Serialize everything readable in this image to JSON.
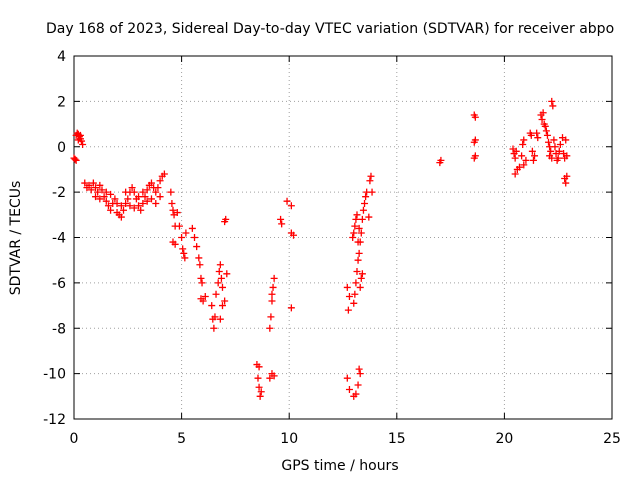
{
  "chart_data": {
    "type": "scatter",
    "title": "Day 168 of 2023, Sidereal Day-to-day VTEC variation (SDTVAR) for receiver abpo",
    "xlabel": "GPS time / hours",
    "ylabel": "SDTVAR / TECUs",
    "xlim": [
      0,
      25
    ],
    "ylim": [
      -12,
      4
    ],
    "x_ticks": [
      0,
      5,
      10,
      15,
      20,
      25
    ],
    "x_tick_labels": [
      "0",
      "5",
      "10",
      "15",
      "20",
      "25"
    ],
    "y_ticks": [
      -12,
      -10,
      -8,
      -6,
      -4,
      -2,
      0,
      2,
      4
    ],
    "y_tick_labels": [
      "-12",
      "-10",
      "-8",
      "-6",
      "-4",
      "-2",
      "0",
      "2",
      "4"
    ],
    "grid": true,
    "marker": "plus",
    "color": "#ff0000",
    "series": [
      {
        "name": "SDTVAR",
        "points": [
          [
            0.0,
            -0.5
          ],
          [
            0.05,
            -0.55
          ],
          [
            0.1,
            -0.6
          ],
          [
            0.1,
            0.5
          ],
          [
            0.15,
            0.6
          ],
          [
            0.2,
            0.55
          ],
          [
            0.25,
            0.45
          ],
          [
            0.3,
            0.35
          ],
          [
            0.35,
            0.25
          ],
          [
            0.4,
            0.1
          ],
          [
            0.2,
            0.3
          ],
          [
            0.3,
            0.5
          ],
          [
            0.5,
            -1.6
          ],
          [
            0.6,
            -1.8
          ],
          [
            0.7,
            -1.7
          ],
          [
            0.8,
            -1.9
          ],
          [
            0.9,
            -1.6
          ],
          [
            1.0,
            -1.8
          ],
          [
            1.1,
            -2.0
          ],
          [
            1.2,
            -1.7
          ],
          [
            1.3,
            -1.9
          ],
          [
            1.4,
            -2.2
          ],
          [
            1.5,
            -2.4
          ],
          [
            1.6,
            -2.6
          ],
          [
            1.7,
            -2.8
          ],
          [
            1.8,
            -2.5
          ],
          [
            1.9,
            -2.3
          ],
          [
            2.0,
            -2.9
          ],
          [
            2.1,
            -3.0
          ],
          [
            2.2,
            -3.1
          ],
          [
            2.3,
            -2.8
          ],
          [
            2.4,
            -2.5
          ],
          [
            2.5,
            -2.3
          ],
          [
            2.6,
            -2.0
          ],
          [
            2.7,
            -1.8
          ],
          [
            2.8,
            -2.0
          ],
          [
            2.9,
            -2.3
          ],
          [
            3.0,
            -2.6
          ],
          [
            3.1,
            -2.8
          ],
          [
            3.2,
            -2.5
          ],
          [
            3.3,
            -2.2
          ],
          [
            3.4,
            -1.9
          ],
          [
            3.5,
            -1.7
          ],
          [
            3.6,
            -1.6
          ],
          [
            3.7,
            -1.8
          ],
          [
            3.8,
            -2.0
          ],
          [
            3.9,
            -1.8
          ],
          [
            4.0,
            -1.5
          ],
          [
            4.1,
            -1.3
          ],
          [
            4.2,
            -1.2
          ],
          [
            1.0,
            -2.2
          ],
          [
            1.2,
            -2.3
          ],
          [
            1.5,
            -2.0
          ],
          [
            1.7,
            -2.1
          ],
          [
            2.0,
            -2.5
          ],
          [
            2.2,
            -2.6
          ],
          [
            2.4,
            -2.0
          ],
          [
            2.6,
            -2.6
          ],
          [
            2.8,
            -2.7
          ],
          [
            3.0,
            -2.2
          ],
          [
            3.2,
            -2.0
          ],
          [
            3.4,
            -2.4
          ],
          [
            3.6,
            -2.3
          ],
          [
            3.8,
            -2.5
          ],
          [
            4.0,
            -2.2
          ],
          [
            4.5,
            -2.0
          ],
          [
            4.55,
            -2.5
          ],
          [
            4.6,
            -2.8
          ],
          [
            4.65,
            -3.0
          ],
          [
            4.7,
            -3.5
          ],
          [
            4.6,
            -4.2
          ],
          [
            4.7,
            -4.3
          ],
          [
            4.8,
            -2.9
          ],
          [
            4.9,
            -3.5
          ],
          [
            5.0,
            -4.0
          ],
          [
            5.05,
            -4.5
          ],
          [
            5.1,
            -4.7
          ],
          [
            5.15,
            -4.9
          ],
          [
            5.2,
            -3.8
          ],
          [
            5.5,
            -3.6
          ],
          [
            5.6,
            -4.0
          ],
          [
            5.7,
            -4.4
          ],
          [
            5.8,
            -4.9
          ],
          [
            5.85,
            -5.2
          ],
          [
            5.9,
            -5.8
          ],
          [
            5.95,
            -6.0
          ],
          [
            5.9,
            -6.7
          ],
          [
            6.0,
            -6.8
          ],
          [
            6.1,
            -6.6
          ],
          [
            6.4,
            -7.0
          ],
          [
            6.45,
            -7.6
          ],
          [
            6.5,
            -8.0
          ],
          [
            6.55,
            -7.5
          ],
          [
            6.6,
            -6.5
          ],
          [
            6.7,
            -6.0
          ],
          [
            6.75,
            -5.5
          ],
          [
            6.8,
            -5.2
          ],
          [
            6.85,
            -5.8
          ],
          [
            6.9,
            -6.2
          ],
          [
            6.8,
            -7.6
          ],
          [
            6.9,
            -7.0
          ],
          [
            7.0,
            -6.8
          ],
          [
            7.1,
            -5.6
          ],
          [
            7.0,
            -3.3
          ],
          [
            7.05,
            -3.2
          ],
          [
            8.5,
            -9.6
          ],
          [
            8.55,
            -10.2
          ],
          [
            8.6,
            -10.6
          ],
          [
            8.65,
            -11.0
          ],
          [
            8.7,
            -10.8
          ],
          [
            8.6,
            -9.7
          ],
          [
            9.1,
            -8.0
          ],
          [
            9.15,
            -7.5
          ],
          [
            9.2,
            -6.8
          ],
          [
            9.25,
            -6.2
          ],
          [
            9.3,
            -5.8
          ],
          [
            9.2,
            -6.5
          ],
          [
            9.1,
            -10.2
          ],
          [
            9.2,
            -10.0
          ],
          [
            9.3,
            -10.1
          ],
          [
            9.6,
            -3.2
          ],
          [
            9.65,
            -3.4
          ],
          [
            9.9,
            -2.4
          ],
          [
            10.1,
            -2.6
          ],
          [
            10.1,
            -3.8
          ],
          [
            10.2,
            -3.9
          ],
          [
            10.1,
            -7.1
          ],
          [
            12.7,
            -10.2
          ],
          [
            12.8,
            -10.7
          ],
          [
            12.7,
            -6.2
          ],
          [
            12.75,
            -7.2
          ],
          [
            12.8,
            -6.6
          ],
          [
            13.0,
            -11.0
          ],
          [
            13.1,
            -10.9
          ],
          [
            13.2,
            -10.5
          ],
          [
            13.3,
            -10.0
          ],
          [
            13.25,
            -9.8
          ],
          [
            13.0,
            -6.9
          ],
          [
            13.05,
            -6.5
          ],
          [
            13.1,
            -6.0
          ],
          [
            13.15,
            -5.5
          ],
          [
            13.2,
            -5.0
          ],
          [
            13.25,
            -4.7
          ],
          [
            13.3,
            -4.2
          ],
          [
            13.35,
            -3.8
          ],
          [
            13.4,
            -3.2
          ],
          [
            13.45,
            -2.8
          ],
          [
            13.5,
            -2.5
          ],
          [
            13.55,
            -2.2
          ],
          [
            13.6,
            -2.0
          ],
          [
            12.95,
            -4.0
          ],
          [
            13.0,
            -3.8
          ],
          [
            13.05,
            -3.5
          ],
          [
            13.1,
            -3.2
          ],
          [
            13.15,
            -3.0
          ],
          [
            13.2,
            -4.2
          ],
          [
            13.25,
            -3.6
          ],
          [
            13.3,
            -6.2
          ],
          [
            13.35,
            -5.8
          ],
          [
            13.4,
            -5.6
          ],
          [
            13.7,
            -3.1
          ],
          [
            13.75,
            -1.5
          ],
          [
            13.8,
            -1.3
          ],
          [
            13.85,
            -2.0
          ],
          [
            17.0,
            -0.7
          ],
          [
            17.05,
            -0.6
          ],
          [
            18.6,
            1.4
          ],
          [
            18.65,
            1.3
          ],
          [
            18.6,
            0.2
          ],
          [
            18.65,
            0.3
          ],
          [
            18.6,
            -0.5
          ],
          [
            18.65,
            -0.4
          ],
          [
            20.4,
            -0.1
          ],
          [
            20.45,
            -0.3
          ],
          [
            20.5,
            -0.5
          ],
          [
            20.55,
            -0.2
          ],
          [
            20.5,
            -1.2
          ],
          [
            20.6,
            -1.0
          ],
          [
            20.7,
            -0.9
          ],
          [
            20.8,
            -0.4
          ],
          [
            20.85,
            0.1
          ],
          [
            20.9,
            0.3
          ],
          [
            20.9,
            -0.8
          ],
          [
            21.0,
            -0.6
          ],
          [
            21.2,
            0.6
          ],
          [
            21.25,
            0.5
          ],
          [
            21.3,
            -0.2
          ],
          [
            21.35,
            -0.6
          ],
          [
            21.4,
            -0.4
          ],
          [
            21.5,
            0.6
          ],
          [
            21.55,
            0.4
          ],
          [
            21.7,
            1.4
          ],
          [
            21.75,
            1.2
          ],
          [
            21.8,
            1.5
          ],
          [
            21.85,
            1.0
          ],
          [
            21.9,
            0.9
          ],
          [
            21.95,
            0.7
          ],
          [
            22.0,
            0.5
          ],
          [
            22.05,
            0.2
          ],
          [
            22.1,
            0.0
          ],
          [
            22.1,
            -0.4
          ],
          [
            22.15,
            -0.2
          ],
          [
            22.2,
            -0.5
          ],
          [
            22.2,
            2.0
          ],
          [
            22.25,
            1.8
          ],
          [
            22.3,
            0.3
          ],
          [
            22.35,
            0.0
          ],
          [
            22.4,
            -0.3
          ],
          [
            22.45,
            -0.6
          ],
          [
            22.5,
            -0.5
          ],
          [
            22.55,
            -0.2
          ],
          [
            22.6,
            0.1
          ],
          [
            22.7,
            0.4
          ],
          [
            22.75,
            -0.3
          ],
          [
            22.8,
            -0.5
          ],
          [
            22.85,
            0.3
          ],
          [
            22.9,
            -0.4
          ],
          [
            22.9,
            -1.3
          ],
          [
            22.85,
            -1.6
          ],
          [
            22.8,
            -1.4
          ]
        ]
      }
    ]
  }
}
